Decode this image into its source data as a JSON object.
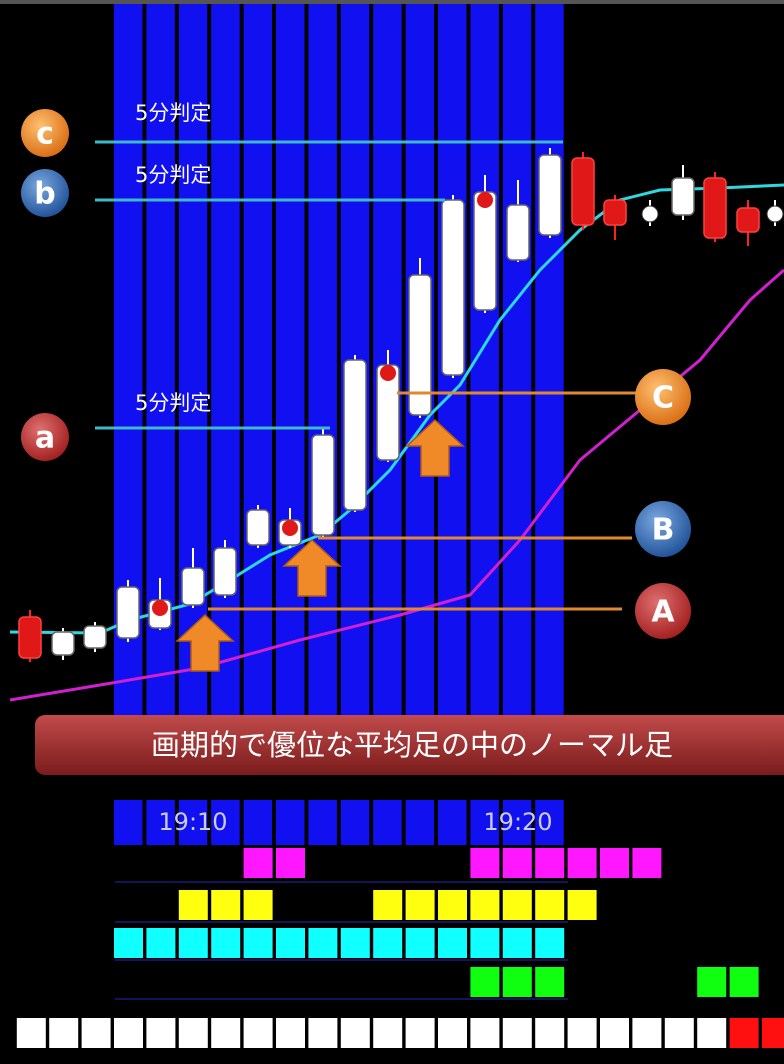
{
  "annotations": [
    {
      "marker": "c",
      "text": "5分判定"
    },
    {
      "marker": "b",
      "text": "5分判定"
    },
    {
      "marker": "a",
      "text": "5分判定"
    }
  ],
  "entries": [
    "C",
    "B",
    "A"
  ],
  "banner": "画期的で優位な平均足の中のノーマル足",
  "times": [
    "19:10",
    "19:20"
  ]
}
